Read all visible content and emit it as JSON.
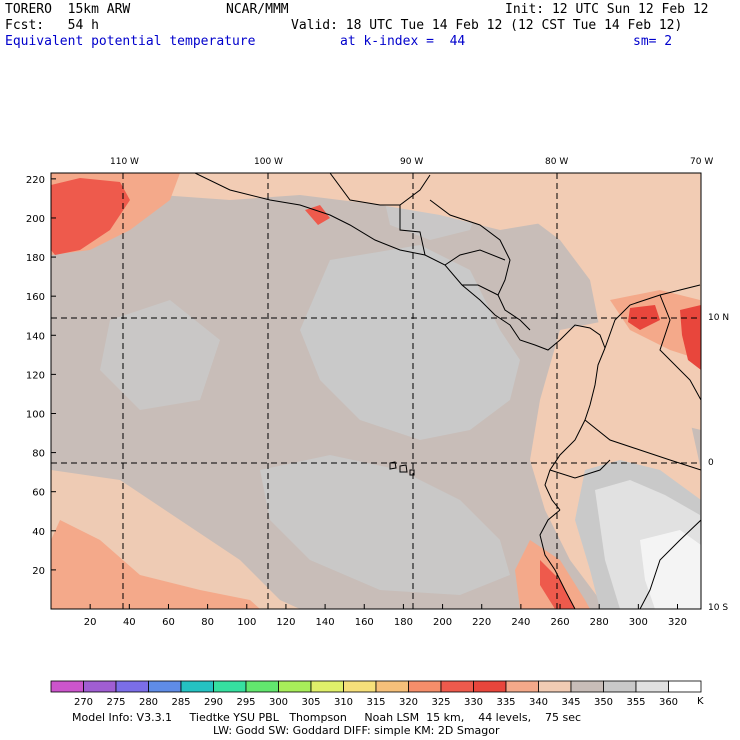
{
  "header": {
    "model": "TORERO  15km ARW",
    "center": "NCAR/MMM",
    "init": "Init: 12 UTC Sun 12 Feb 12",
    "fcst": "Fcst:   54 h",
    "valid": "Valid: 18 UTC Tue 14 Feb 12 (12 CST Tue 14 Feb 12)",
    "field": "Equivalent potential temperature",
    "level": "at k-index =  44",
    "smoothing": "sm= 2"
  },
  "map": {
    "lon_labels": [
      "110 W",
      "100 W",
      "90 W",
      "80 W",
      "70 W"
    ],
    "lat_labels": [
      "10 N",
      "0",
      "10 S"
    ],
    "x_ticks": [
      "20",
      "40",
      "60",
      "80",
      "100",
      "120",
      "140",
      "160",
      "180",
      "200",
      "220",
      "240",
      "260",
      "280",
      "300",
      "320"
    ],
    "y_ticks": [
      "20",
      "40",
      "60",
      "80",
      "100",
      "120",
      "140",
      "160",
      "180",
      "200",
      "220"
    ],
    "dominant_range": "345-350 K",
    "colors": {
      "bg_field": "#c8bdb8",
      "cool": "#c9c9c9",
      "light": "#f2ccb4",
      "warm": "#f4a98a",
      "hot": "#ee5a4c",
      "very_hot": "#e8463c",
      "white": "#f4f4f4",
      "lightgray": "#e1e1e1"
    }
  },
  "colorbar": {
    "unit": "K",
    "labels": [
      "270",
      "275",
      "280",
      "285",
      "290",
      "295",
      "300",
      "305",
      "310",
      "315",
      "320",
      "325",
      "330",
      "335",
      "340",
      "345",
      "350",
      "355",
      "360"
    ],
    "colors": [
      "#cc55cc",
      "#a05ed2",
      "#7b6ee8",
      "#5f8ce6",
      "#25c2c2",
      "#36e0a0",
      "#62e66e",
      "#a8ee5a",
      "#e0f06a",
      "#f6e07a",
      "#f6c07a",
      "#f58e6a",
      "#ee5a4c",
      "#e8463c",
      "#f4a98a",
      "#f2ccb4",
      "#c8bdb8",
      "#c9c9c9",
      "#e1e1e1",
      "#ffffff"
    ]
  },
  "footer": {
    "line1": "Model Info: V3.3.1     Tiedtke YSU PBL   Thompson     Noah LSM  15 km,    44 levels,    75 sec",
    "line2": "LW: Godd SW: Goddard DIFF: simple KM: 2D Smagor"
  }
}
